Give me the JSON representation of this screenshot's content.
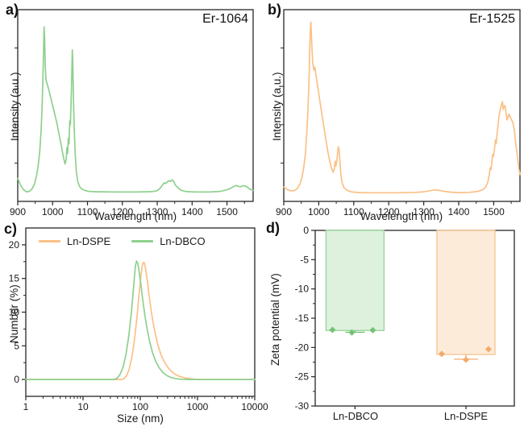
{
  "panels": {
    "a": {
      "label": "a)"
    },
    "b": {
      "label": "b)"
    },
    "c": {
      "label": "c)"
    },
    "d": {
      "label": "d)"
    }
  },
  "colors": {
    "green": "#8ed08e",
    "orange": "#fbc086",
    "green_fill": "#ddf1dd",
    "green_stroke": "#98d398",
    "green_pt": "#74c274",
    "orange_fill": "#fdebd9",
    "orange_stroke": "#f8c38b",
    "orange_pt": "#f3ab6c",
    "axis": "#262626",
    "text": "#1a1a1a"
  },
  "chart_data": [
    {
      "id": "a",
      "type": "line",
      "title": "Er-1064",
      "xlabel": "Wavelength (nm)",
      "ylabel": "Intensity (a.u.)",
      "xlim": [
        900,
        1575
      ],
      "xticks": [
        900,
        1000,
        1100,
        1200,
        1300,
        1400,
        1500
      ],
      "ylim": [
        0,
        1
      ],
      "grid": false,
      "legend": "none",
      "series": [
        {
          "name": "Er-1064",
          "color": "green",
          "points": [
            [
              900,
              0.12
            ],
            [
              908,
              0.085
            ],
            [
              916,
              0.062
            ],
            [
              925,
              0.05
            ],
            [
              933,
              0.052
            ],
            [
              941,
              0.065
            ],
            [
              948,
              0.09
            ],
            [
              954,
              0.135
            ],
            [
              959,
              0.19
            ],
            [
              963,
              0.26
            ],
            [
              967,
              0.37
            ],
            [
              970,
              0.5
            ],
            [
              972,
              0.62
            ],
            [
              974,
              0.78
            ],
            [
              975.5,
              0.91
            ],
            [
              977,
              0.86
            ],
            [
              979,
              0.7
            ],
            [
              981,
              0.635
            ],
            [
              984,
              0.615
            ],
            [
              988,
              0.59
            ],
            [
              994,
              0.545
            ],
            [
              1000,
              0.5
            ],
            [
              1006,
              0.455
            ],
            [
              1012,
              0.41
            ],
            [
              1018,
              0.355
            ],
            [
              1024,
              0.3
            ],
            [
              1029,
              0.25
            ],
            [
              1033,
              0.215
            ],
            [
              1036,
              0.195
            ],
            [
              1039,
              0.22
            ],
            [
              1041,
              0.28
            ],
            [
              1043,
              0.25
            ],
            [
              1045,
              0.33
            ],
            [
              1047,
              0.3
            ],
            [
              1049,
              0.42
            ],
            [
              1051,
              0.4
            ],
            [
              1053,
              0.52
            ],
            [
              1055,
              0.67
            ],
            [
              1056.5,
              0.79
            ],
            [
              1058,
              0.73
            ],
            [
              1060,
              0.52
            ],
            [
              1062,
              0.38
            ],
            [
              1065,
              0.24
            ],
            [
              1068,
              0.155
            ],
            [
              1072,
              0.105
            ],
            [
              1077,
              0.078
            ],
            [
              1083,
              0.065
            ],
            [
              1092,
              0.057
            ],
            [
              1105,
              0.052
            ],
            [
              1130,
              0.05
            ],
            [
              1180,
              0.049
            ],
            [
              1240,
              0.049
            ],
            [
              1285,
              0.051
            ],
            [
              1300,
              0.056
            ],
            [
              1308,
              0.068
            ],
            [
              1315,
              0.085
            ],
            [
              1320,
              0.097
            ],
            [
              1324,
              0.092
            ],
            [
              1328,
              0.1
            ],
            [
              1333,
              0.108
            ],
            [
              1338,
              0.104
            ],
            [
              1343,
              0.112
            ],
            [
              1347,
              0.106
            ],
            [
              1352,
              0.085
            ],
            [
              1358,
              0.075
            ],
            [
              1364,
              0.063
            ],
            [
              1372,
              0.056
            ],
            [
              1385,
              0.051
            ],
            [
              1410,
              0.049
            ],
            [
              1450,
              0.049
            ],
            [
              1480,
              0.052
            ],
            [
              1495,
              0.058
            ],
            [
              1508,
              0.066
            ],
            [
              1518,
              0.076
            ],
            [
              1526,
              0.083
            ],
            [
              1532,
              0.079
            ],
            [
              1539,
              0.076
            ],
            [
              1546,
              0.082
            ],
            [
              1553,
              0.08
            ],
            [
              1560,
              0.072
            ],
            [
              1567,
              0.062
            ],
            [
              1575,
              0.057
            ]
          ]
        }
      ]
    },
    {
      "id": "b",
      "type": "line",
      "title": "Er-1525",
      "xlabel": "Wavelength (nm)",
      "ylabel": "Intensity (a.u.)",
      "xlim": [
        900,
        1575
      ],
      "xticks": [
        900,
        1000,
        1100,
        1200,
        1300,
        1400,
        1500
      ],
      "ylim": [
        0,
        1
      ],
      "grid": false,
      "legend": "none",
      "series": [
        {
          "name": "Er-1525",
          "color": "orange",
          "points": [
            [
              900,
              0.075
            ],
            [
              910,
              0.062
            ],
            [
              920,
              0.055
            ],
            [
              930,
              0.056
            ],
            [
              939,
              0.068
            ],
            [
              946,
              0.09
            ],
            [
              952,
              0.125
            ],
            [
              957,
              0.175
            ],
            [
              962,
              0.25
            ],
            [
              966,
              0.36
            ],
            [
              969,
              0.48
            ],
            [
              972,
              0.63
            ],
            [
              974,
              0.78
            ],
            [
              976,
              0.9
            ],
            [
              977.5,
              0.935
            ],
            [
              979,
              0.87
            ],
            [
              981,
              0.78
            ],
            [
              983,
              0.72
            ],
            [
              986,
              0.685
            ],
            [
              989,
              0.7
            ],
            [
              992,
              0.66
            ],
            [
              997,
              0.6
            ],
            [
              1003,
              0.525
            ],
            [
              1009,
              0.455
            ],
            [
              1015,
              0.385
            ],
            [
              1021,
              0.315
            ],
            [
              1027,
              0.25
            ],
            [
              1032,
              0.205
            ],
            [
              1037,
              0.17
            ],
            [
              1041,
              0.152
            ],
            [
              1044,
              0.165
            ],
            [
              1047,
              0.21
            ],
            [
              1049,
              0.185
            ],
            [
              1052,
              0.215
            ],
            [
              1054,
              0.255
            ],
            [
              1056,
              0.285
            ],
            [
              1058,
              0.27
            ],
            [
              1060,
              0.22
            ],
            [
              1063,
              0.14
            ],
            [
              1067,
              0.095
            ],
            [
              1072,
              0.072
            ],
            [
              1080,
              0.058
            ],
            [
              1092,
              0.05
            ],
            [
              1115,
              0.046
            ],
            [
              1160,
              0.045
            ],
            [
              1220,
              0.045
            ],
            [
              1275,
              0.047
            ],
            [
              1300,
              0.05
            ],
            [
              1318,
              0.056
            ],
            [
              1332,
              0.06
            ],
            [
              1345,
              0.057
            ],
            [
              1360,
              0.052
            ],
            [
              1378,
              0.048
            ],
            [
              1400,
              0.046
            ],
            [
              1430,
              0.047
            ],
            [
              1455,
              0.052
            ],
            [
              1468,
              0.06
            ],
            [
              1477,
              0.075
            ],
            [
              1483,
              0.1
            ],
            [
              1487,
              0.135
            ],
            [
              1490,
              0.175
            ],
            [
              1492,
              0.165
            ],
            [
              1495,
              0.21
            ],
            [
              1497,
              0.245
            ],
            [
              1499,
              0.235
            ],
            [
              1502,
              0.27
            ],
            [
              1505,
              0.32
            ],
            [
              1507,
              0.3
            ],
            [
              1510,
              0.36
            ],
            [
              1513,
              0.41
            ],
            [
              1516,
              0.455
            ],
            [
              1519,
              0.48
            ],
            [
              1522,
              0.505
            ],
            [
              1525,
              0.52
            ],
            [
              1527,
              0.48
            ],
            [
              1529,
              0.495
            ],
            [
              1532,
              0.5
            ],
            [
              1535,
              0.465
            ],
            [
              1538,
              0.425
            ],
            [
              1541,
              0.44
            ],
            [
              1544,
              0.455
            ],
            [
              1547,
              0.44
            ],
            [
              1551,
              0.425
            ],
            [
              1555,
              0.41
            ],
            [
              1559,
              0.37
            ],
            [
              1563,
              0.3
            ],
            [
              1568,
              0.23
            ],
            [
              1572,
              0.17
            ],
            [
              1575,
              0.14
            ]
          ]
        }
      ]
    },
    {
      "id": "c",
      "type": "line",
      "xscale": "log",
      "xlabel": "Size (nm)",
      "ylabel": "Number (%)",
      "xlim": [
        1,
        10000
      ],
      "xticks": [
        1,
        10,
        100,
        1000,
        10000
      ],
      "ylim": [
        -2.5,
        22.5
      ],
      "yticks": [
        0,
        5,
        10,
        15,
        20
      ],
      "grid": false,
      "legend_position": "top-left",
      "series": [
        {
          "name": "Ln-DSPE",
          "color": "orange",
          "points": [
            [
              1,
              0
            ],
            [
              30,
              0
            ],
            [
              48,
              0
            ],
            [
              53,
              0.2
            ],
            [
              58,
              0.6
            ],
            [
              64,
              1.5
            ],
            [
              71,
              3.2
            ],
            [
              79,
              5.8
            ],
            [
              87,
              9.0
            ],
            [
              95,
              12.5
            ],
            [
              102,
              15.2
            ],
            [
              108,
              16.9
            ],
            [
              113,
              17.4
            ],
            [
              118,
              17.3
            ],
            [
              124,
              16.4
            ],
            [
              132,
              14.8
            ],
            [
              142,
              12.6
            ],
            [
              154,
              10.4
            ],
            [
              168,
              8.4
            ],
            [
              185,
              6.6
            ],
            [
              205,
              5.0
            ],
            [
              230,
              3.7
            ],
            [
              260,
              2.7
            ],
            [
              300,
              1.85
            ],
            [
              350,
              1.2
            ],
            [
              410,
              0.75
            ],
            [
              490,
              0.45
            ],
            [
              590,
              0.26
            ],
            [
              720,
              0.13
            ],
            [
              900,
              0.05
            ],
            [
              1200,
              0.01
            ],
            [
              1600,
              0
            ],
            [
              10000,
              0
            ]
          ]
        },
        {
          "name": "Ln-DBCO",
          "color": "green",
          "points": [
            [
              1,
              0
            ],
            [
              20,
              0
            ],
            [
              34,
              0
            ],
            [
              39,
              0.15
            ],
            [
              44,
              0.7
            ],
            [
              50,
              1.8
            ],
            [
              56,
              3.6
            ],
            [
              63,
              6.5
            ],
            [
              70,
              10
            ],
            [
              77,
              14
            ],
            [
              82,
              16.8
            ],
            [
              86,
              17.6
            ],
            [
              90,
              17.3
            ],
            [
              95,
              16.2
            ],
            [
              102,
              14.3
            ],
            [
              110,
              12
            ],
            [
              120,
              9.6
            ],
            [
              132,
              7.4
            ],
            [
              147,
              5.5
            ],
            [
              165,
              3.9
            ],
            [
              188,
              2.6
            ],
            [
              215,
              1.7
            ],
            [
              250,
              1.0
            ],
            [
              295,
              0.55
            ],
            [
              350,
              0.28
            ],
            [
              420,
              0.12
            ],
            [
              520,
              0.04
            ],
            [
              650,
              0.01
            ],
            [
              800,
              0
            ],
            [
              10000,
              0
            ]
          ]
        }
      ]
    },
    {
      "id": "d",
      "type": "bar",
      "xlabel": "",
      "ylabel": "Zeta potential (mV)",
      "ylim": [
        -30,
        0
      ],
      "yticks": [
        0,
        -5,
        -10,
        -15,
        -20,
        -25,
        -30
      ],
      "categories": [
        "Ln-DBCO",
        "Ln-DSPE"
      ],
      "values": [
        -17.1,
        -21.2
      ],
      "bars": [
        {
          "category": "Ln-DBCO",
          "value": -17.1,
          "color": "green",
          "points": [
            {
              "dx": -28,
              "mv": -17.0
            },
            {
              "dx": -4,
              "mv": -17.45
            },
            {
              "dx": 22,
              "mv": -17.05
            }
          ],
          "whisker": {
            "from": -17.1,
            "to": -17.4,
            "cap": 24
          }
        },
        {
          "category": "Ln-DSPE",
          "value": -21.2,
          "color": "orange",
          "points": [
            {
              "dx": -30,
              "mv": -21.1
            },
            {
              "dx": 0,
              "mv": -22.1
            },
            {
              "dx": 28,
              "mv": -20.3
            }
          ],
          "whisker": {
            "from": -21.2,
            "to": -22.0,
            "cap": 30
          }
        }
      ]
    }
  ]
}
